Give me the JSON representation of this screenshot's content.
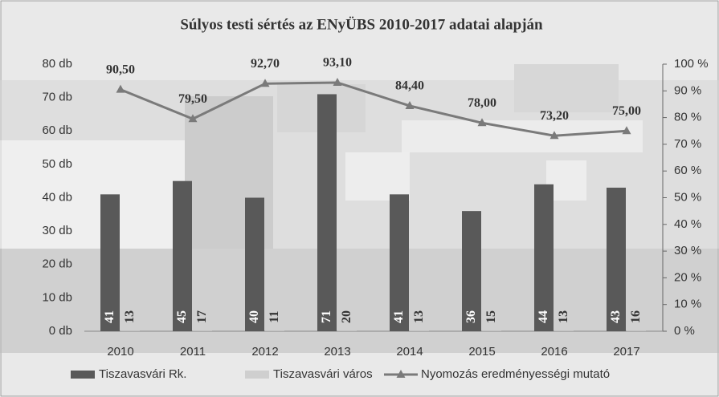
{
  "chart_data": {
    "type": "bar-line",
    "title": "Súlyos testi sértés az ENyÜBS 2010-2017 adatai alapján",
    "categories": [
      "2010",
      "2011",
      "2012",
      "2013",
      "2014",
      "2015",
      "2016",
      "2017"
    ],
    "series": [
      {
        "name": "Tiszavasvári Rk.",
        "color": "#595959",
        "type": "bar",
        "values": [
          41,
          45,
          40,
          71,
          41,
          36,
          44,
          43
        ]
      },
      {
        "name": "Tiszavasvári város",
        "color": "#cfcfcf",
        "type": "bar",
        "values": [
          13,
          17,
          11,
          20,
          13,
          15,
          13,
          16
        ]
      },
      {
        "name": "Nyomozás eredményességi mutató",
        "color": "#7a7a7a",
        "type": "line",
        "axis": "y2",
        "values": [
          90.5,
          79.5,
          92.7,
          93.1,
          84.4,
          78.0,
          73.2,
          75.0
        ],
        "value_labels": [
          "90,50",
          "79,50",
          "92,70",
          "93,10",
          "84,40",
          "78,00",
          "73,20",
          "75,00"
        ]
      }
    ],
    "ylim": [
      0,
      80
    ],
    "yticks": [
      {
        "value": 0,
        "label": "0 db"
      },
      {
        "value": 10,
        "label": "10 db"
      },
      {
        "value": 20,
        "label": "20 db"
      },
      {
        "value": 30,
        "label": "30 db"
      },
      {
        "value": 40,
        "label": "40 db"
      },
      {
        "value": 50,
        "label": "50 db"
      },
      {
        "value": 60,
        "label": "60 db"
      },
      {
        "value": 70,
        "label": "70 db"
      },
      {
        "value": 80,
        "label": "80 db"
      }
    ],
    "y2lim": [
      0,
      100
    ],
    "y2ticks": [
      {
        "value": 0,
        "label": "0 %"
      },
      {
        "value": 10,
        "label": "10 %"
      },
      {
        "value": 20,
        "label": "20 %"
      },
      {
        "value": 30,
        "label": "30 %"
      },
      {
        "value": 40,
        "label": "40 %"
      },
      {
        "value": 50,
        "label": "50 %"
      },
      {
        "value": 60,
        "label": "60 %"
      },
      {
        "value": 70,
        "label": "70 %"
      },
      {
        "value": 80,
        "label": "80 %"
      },
      {
        "value": 90,
        "label": "90 %"
      },
      {
        "value": 100,
        "label": "100 %"
      }
    ],
    "legend": "bottom"
  }
}
